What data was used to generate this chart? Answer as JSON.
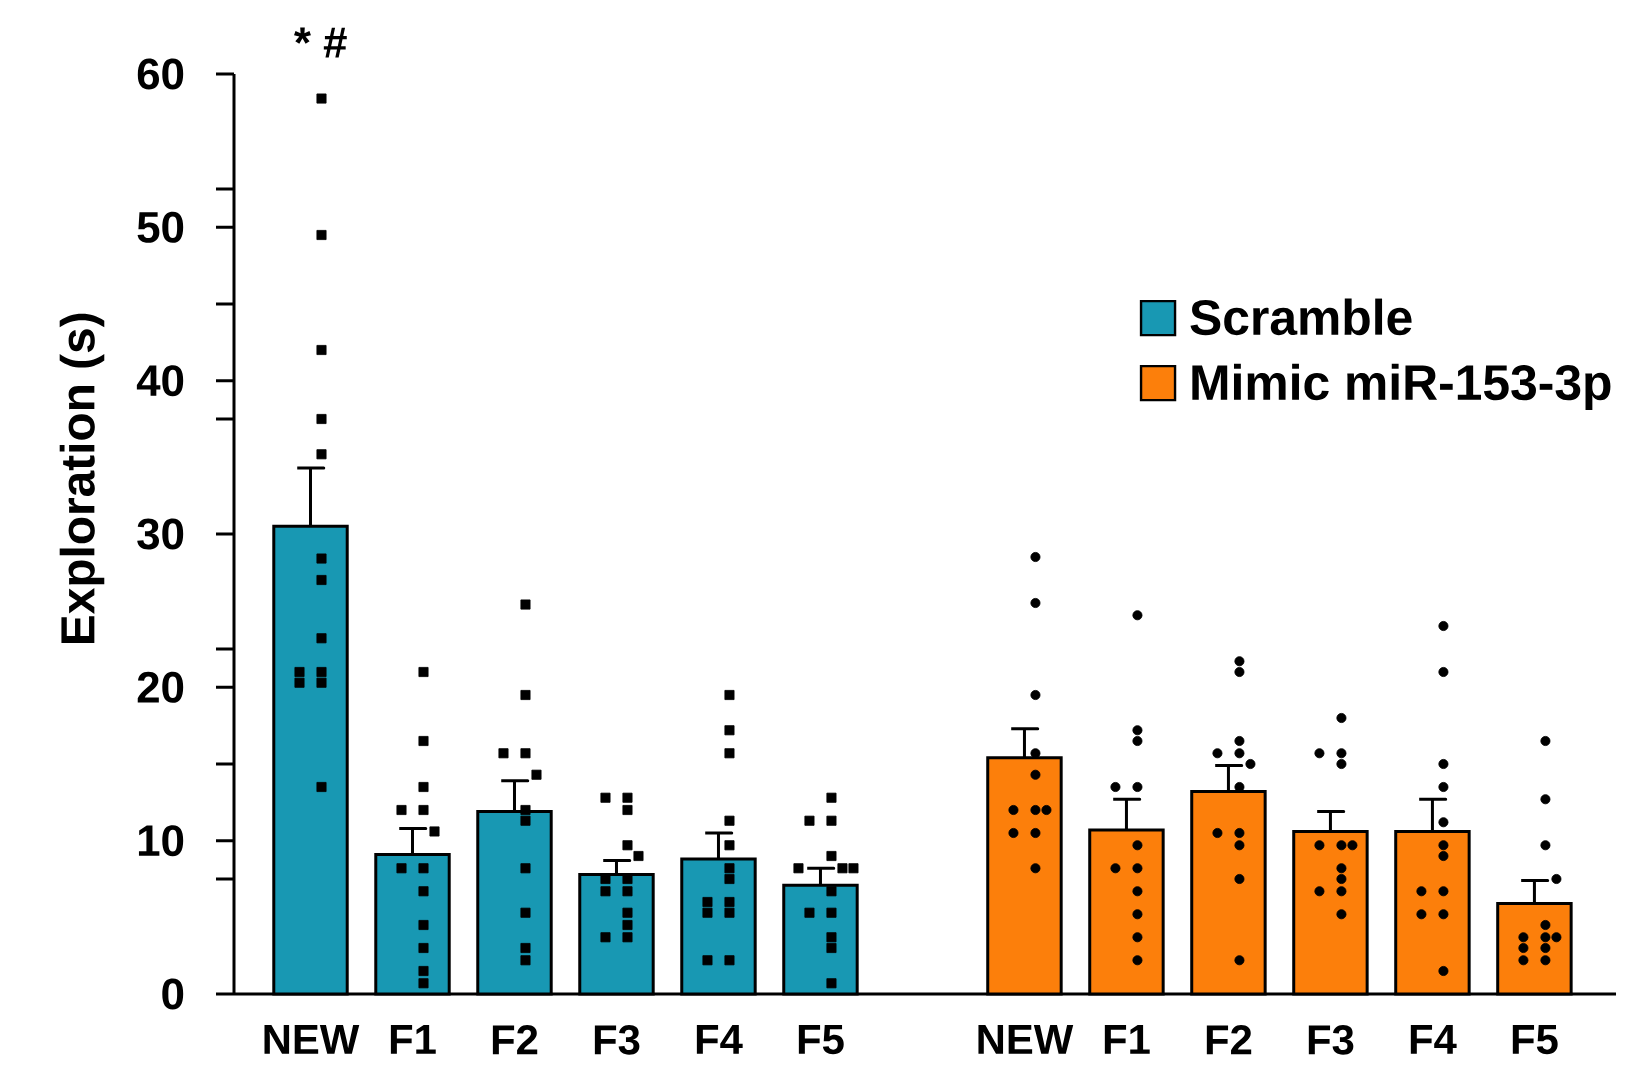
{
  "chart_data": {
    "type": "bar",
    "ylabel": "Exploration (s)",
    "categories": [
      "NEW",
      "F1",
      "F2",
      "F3",
      "F4",
      "F5",
      null,
      "NEW",
      "F1",
      "F2",
      "F3",
      "F4",
      "F5"
    ],
    "series": [
      {
        "name": "Scramble",
        "color": "#1898b3",
        "values": [
          30.5,
          9.1,
          11.9,
          7.8,
          8.8,
          7.1,
          null,
          null,
          null,
          null,
          null,
          null,
          null
        ],
        "errors": [
          [
            30.5,
            34.3
          ],
          [
            9.1,
            10.8
          ],
          [
            11.9,
            13.9
          ],
          [
            7.8,
            8.7
          ],
          [
            8.8,
            10.5
          ],
          [
            7.1,
            8.2
          ],
          null,
          null,
          null,
          null,
          null,
          null,
          null
        ]
      },
      {
        "name": "Mimic miR-153-3p",
        "color": "#fc7f0b",
        "values": [
          null,
          null,
          null,
          null,
          null,
          null,
          null,
          15.4,
          10.7,
          13.2,
          10.6,
          10.6,
          5.9
        ],
        "errors": [
          null,
          null,
          null,
          null,
          null,
          null,
          null,
          [
            15.4,
            17.3
          ],
          [
            10.7,
            12.7
          ],
          [
            13.2,
            14.9
          ],
          [
            10.6,
            11.9
          ],
          [
            10.6,
            12.7
          ],
          [
            5.9,
            7.4
          ]
        ]
      },
      {
        "type": "scatter",
        "color": "#000000",
        "marker": "square",
        "values": [
          58.4,
          21.0,
          25.4,
          12.8,
          19.5,
          12.8,
          null,
          null,
          null,
          null,
          null,
          null,
          null
        ]
      },
      {
        "type": "scatter",
        "color": "#000000",
        "marker": "square",
        "values": [
          49.5,
          16.5,
          19.5,
          12.8,
          17.2,
          11.3,
          null,
          null,
          null,
          null,
          null,
          null,
          null
        ]
      },
      {
        "type": "scatter",
        "color": "#000000",
        "marker": "square",
        "values": [
          42.0,
          13.5,
          15.7,
          12.0,
          15.7,
          11.3,
          null,
          null,
          null,
          null,
          null,
          null,
          null
        ]
      },
      {
        "type": "scatter",
        "color": "#000000",
        "marker": "square",
        "values": [
          37.5,
          12.0,
          15.7,
          9.7,
          11.3,
          9.0,
          null,
          null,
          null,
          null,
          null,
          null,
          null
        ]
      },
      {
        "type": "scatter",
        "color": "#000000",
        "marker": "square",
        "values": [
          35.2,
          12.0,
          14.3,
          9.0,
          9.7,
          8.2,
          null,
          null,
          null,
          null,
          null,
          null,
          null
        ]
      },
      {
        "type": "scatter",
        "color": "#000000",
        "marker": "square",
        "values": [
          28.4,
          10.6,
          12.0,
          7.5,
          8.2,
          8.2,
          null,
          null,
          null,
          null,
          null,
          null,
          null
        ]
      },
      {
        "type": "scatter",
        "color": "#000000",
        "marker": "square",
        "values": [
          27.0,
          8.2,
          11.3,
          7.5,
          7.5,
          8.2,
          null,
          null,
          null,
          null,
          null,
          null,
          null
        ]
      },
      {
        "type": "scatter",
        "color": "#000000",
        "marker": "square",
        "values": [
          23.2,
          8.2,
          8.2,
          6.7,
          6.0,
          6.7,
          null,
          null,
          null,
          null,
          null,
          null,
          null
        ]
      },
      {
        "type": "scatter",
        "color": "#000000",
        "marker": "square",
        "values": [
          21.0,
          6.7,
          5.3,
          6.7,
          6.0,
          5.3,
          null,
          null,
          null,
          null,
          null,
          null,
          null
        ]
      },
      {
        "type": "scatter",
        "color": "#000000",
        "marker": "square",
        "values": [
          21.0,
          4.5,
          3.0,
          5.3,
          5.3,
          5.3,
          null,
          null,
          null,
          null,
          null,
          null,
          null
        ]
      },
      {
        "type": "scatter",
        "color": "#000000",
        "marker": "square",
        "values": [
          20.3,
          3.0,
          2.2,
          4.5,
          5.3,
          3.7,
          null,
          null,
          null,
          null,
          null,
          null,
          null
        ]
      },
      {
        "type": "scatter",
        "color": "#000000",
        "marker": "square",
        "values": [
          20.3,
          1.5,
          null,
          3.7,
          2.2,
          3.0,
          null,
          null,
          null,
          null,
          null,
          null,
          null
        ]
      },
      {
        "type": "scatter",
        "color": "#000000",
        "marker": "square",
        "values": [
          13.5,
          0.7,
          null,
          3.7,
          2.2,
          0.7,
          null,
          null,
          null,
          null,
          null,
          null,
          null
        ]
      },
      {
        "type": "scatter",
        "color": "#000000",
        "marker": "circle",
        "values": [
          null,
          null,
          null,
          null,
          null,
          null,
          null,
          28.5,
          24.7,
          21.7,
          18.0,
          24.0,
          16.5
        ]
      },
      {
        "type": "scatter",
        "color": "#000000",
        "marker": "circle",
        "values": [
          null,
          null,
          null,
          null,
          null,
          null,
          null,
          25.5,
          17.2,
          21.0,
          15.7,
          21.0,
          12.7
        ]
      },
      {
        "type": "scatter",
        "color": "#000000",
        "marker": "circle",
        "values": [
          null,
          null,
          null,
          null,
          null,
          null,
          null,
          19.5,
          16.5,
          16.5,
          15.7,
          15.0,
          9.7
        ]
      },
      {
        "type": "scatter",
        "color": "#000000",
        "marker": "circle",
        "values": [
          null,
          null,
          null,
          null,
          null,
          null,
          null,
          15.7,
          13.5,
          15.7,
          15.0,
          13.5,
          7.5
        ]
      },
      {
        "type": "scatter",
        "color": "#000000",
        "marker": "circle",
        "values": [
          null,
          null,
          null,
          null,
          null,
          null,
          null,
          14.3,
          13.5,
          15.7,
          9.7,
          11.2,
          4.5
        ]
      },
      {
        "type": "scatter",
        "color": "#000000",
        "marker": "circle",
        "values": [
          null,
          null,
          null,
          null,
          null,
          null,
          null,
          12.0,
          9.7,
          15.0,
          9.7,
          9.7,
          3.7
        ]
      },
      {
        "type": "scatter",
        "color": "#000000",
        "marker": "circle",
        "values": [
          null,
          null,
          null,
          null,
          null,
          null,
          null,
          12.0,
          8.2,
          13.5,
          9.7,
          9.0,
          3.7
        ]
      },
      {
        "type": "scatter",
        "color": "#000000",
        "marker": "circle",
        "values": [
          null,
          null,
          null,
          null,
          null,
          null,
          null,
          12.0,
          8.2,
          10.5,
          8.2,
          6.7,
          3.7
        ]
      },
      {
        "type": "scatter",
        "color": "#000000",
        "marker": "circle",
        "values": [
          null,
          null,
          null,
          null,
          null,
          null,
          null,
          10.5,
          6.7,
          10.5,
          7.5,
          6.7,
          3.0
        ]
      },
      {
        "type": "scatter",
        "color": "#000000",
        "marker": "circle",
        "values": [
          null,
          null,
          null,
          null,
          null,
          null,
          null,
          10.5,
          5.2,
          9.7,
          6.7,
          5.2,
          3.0
        ]
      },
      {
        "type": "scatter",
        "color": "#000000",
        "marker": "circle",
        "values": [
          null,
          null,
          null,
          null,
          null,
          null,
          null,
          8.2,
          3.7,
          7.5,
          6.7,
          5.2,
          2.2
        ]
      },
      {
        "type": "scatter",
        "color": "#000000",
        "marker": "circle",
        "values": [
          null,
          null,
          null,
          null,
          null,
          null,
          null,
          null,
          2.2,
          2.2,
          5.2,
          1.5,
          2.2
        ]
      }
    ],
    "ylim": [
      0,
      60
    ],
    "yticks": [
      0,
      {
        "value": 7.5,
        "label": null
      },
      10,
      {
        "value": 15,
        "label": null
      },
      20,
      {
        "value": 22.5,
        "label": null
      },
      30,
      {
        "value": 37.5,
        "label": null
      },
      40,
      {
        "value": 45,
        "label": null
      },
      50,
      {
        "value": 52.5,
        "label": null
      },
      60
    ],
    "legend": "top right",
    "annotations": [
      "* #"
    ]
  }
}
